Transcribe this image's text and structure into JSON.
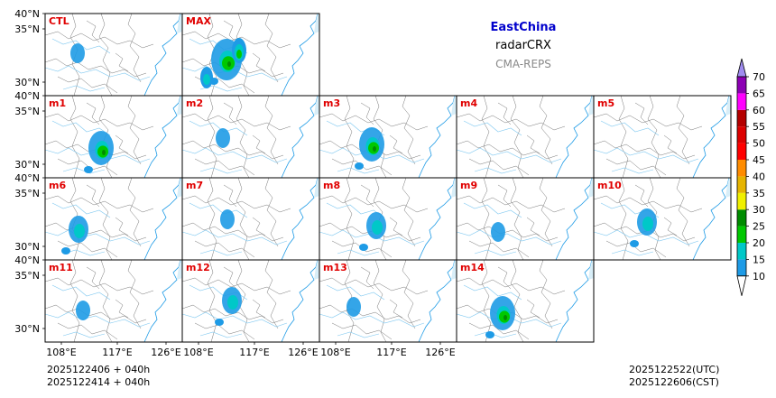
{
  "header": {
    "region": "EastChina",
    "variable": "radarCRX",
    "model": "CMA-REPS",
    "region_color": "#0000cc",
    "model_color": "#888888"
  },
  "panels": [
    {
      "label": "CTL",
      "row": 0,
      "col": 0,
      "echo": 1
    },
    {
      "label": "MAX",
      "row": 0,
      "col": 1,
      "echo": 4
    },
    {
      "label": "m1",
      "row": 1,
      "col": 0,
      "echo": 3
    },
    {
      "label": "m2",
      "row": 1,
      "col": 1,
      "echo": 1
    },
    {
      "label": "m3",
      "row": 1,
      "col": 2,
      "echo": 3
    },
    {
      "label": "m4",
      "row": 1,
      "col": 3,
      "echo": 0
    },
    {
      "label": "m5",
      "row": 1,
      "col": 4,
      "echo": 0
    },
    {
      "label": "m6",
      "row": 2,
      "col": 0,
      "echo": 2
    },
    {
      "label": "m7",
      "row": 2,
      "col": 1,
      "echo": 1
    },
    {
      "label": "m8",
      "row": 2,
      "col": 2,
      "echo": 2
    },
    {
      "label": "m9",
      "row": 2,
      "col": 3,
      "echo": 1
    },
    {
      "label": "m10",
      "row": 2,
      "col": 4,
      "echo": 2
    },
    {
      "label": "m11",
      "row": 3,
      "col": 0,
      "echo": 1
    },
    {
      "label": "m12",
      "row": 3,
      "col": 1,
      "echo": 2
    },
    {
      "label": "m13",
      "row": 3,
      "col": 2,
      "echo": 1
    },
    {
      "label": "m14",
      "row": 3,
      "col": 3,
      "echo": 3
    }
  ],
  "panel_label_color": "#e00000",
  "lat_ticks": [
    "40°N",
    "35°N",
    "30°N"
  ],
  "lon_ticks": [
    "108°E",
    "117°E",
    "126°E"
  ],
  "colorbar": {
    "levels": [
      "10",
      "15",
      "20",
      "25",
      "30",
      "35",
      "40",
      "45",
      "50",
      "55",
      "60",
      "65",
      "70"
    ],
    "colors": [
      "#1e9be6",
      "#00c8c8",
      "#00c800",
      "#008c00",
      "#f0f000",
      "#e6b400",
      "#ff8c00",
      "#ff0000",
      "#dc0000",
      "#b40000",
      "#ff00ff",
      "#8c00b4",
      "#a08cf0"
    ],
    "under_color": "#ffffff"
  },
  "footer": {
    "init_utc": "2025122406  +  040h",
    "init_cst": "2025122414  +  040h",
    "valid_utc": "2025122522(UTC)",
    "valid_cst": "2025122606(CST)"
  }
}
